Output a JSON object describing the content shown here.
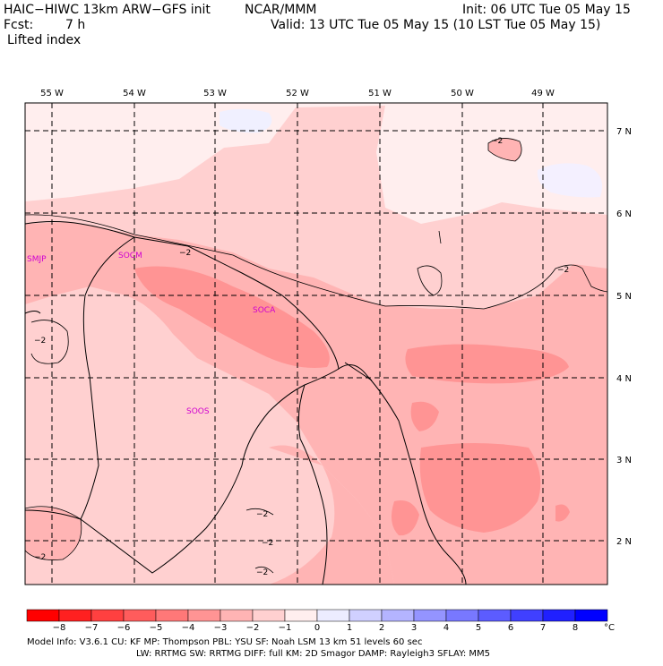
{
  "header": {
    "model": "HAIC−HIWC 13km ARW−GFS init",
    "org": "NCAR/MMM",
    "init": "Init: 06 UTC Tue 05 May 15",
    "fcst_label": "Fcst:",
    "fcst_value": "7 h",
    "valid": "Valid: 13 UTC Tue 05 May 15 (10 LST Tue 05 May 15)",
    "field": "Lifted index"
  },
  "lon_labels": [
    "55 W",
    "54 W",
    "53 W",
    "52 W",
    "51 W",
    "50 W",
    "49 W"
  ],
  "lat_labels": [
    "7 N",
    "6 N",
    "5 N",
    "4 N",
    "3 N",
    "2 N"
  ],
  "stations": [
    "SMJP",
    "SOCM",
    "SOCA",
    "SOOS"
  ],
  "contour_labels": [
    "−2",
    "−2",
    "−2",
    "−2",
    "−2",
    "−2",
    "−2",
    "−2"
  ],
  "colorbar": {
    "ticks": [
      "−8",
      "−7",
      "−6",
      "−5",
      "−4",
      "−3",
      "−2",
      "−1",
      "0",
      "1",
      "2",
      "3",
      "4",
      "5",
      "6",
      "7",
      "8"
    ],
    "unit": "°C",
    "colors": [
      "#ff0000",
      "#ff2020",
      "#ff4040",
      "#ff5c5c",
      "#ff7878",
      "#ff9494",
      "#ffb4b4",
      "#ffd0d0",
      "#ffeeee",
      "#ececff",
      "#d0d0ff",
      "#b4b4ff",
      "#9494ff",
      "#7878ff",
      "#5c5cff",
      "#4040ff",
      "#2020ff",
      "#0000ff"
    ]
  },
  "footer": {
    "line1": "Model Info: V3.6.1     CU: KF        MP: Thompson      PBL: YSU        SF: Noah LSM      13 km     51 levels   60 sec",
    "line2": "LW: RRTMG     SW: RRTMG   DIFF: full     KM: 2D Smagor DAMP: Rayleigh3   SFLAY: MM5"
  }
}
